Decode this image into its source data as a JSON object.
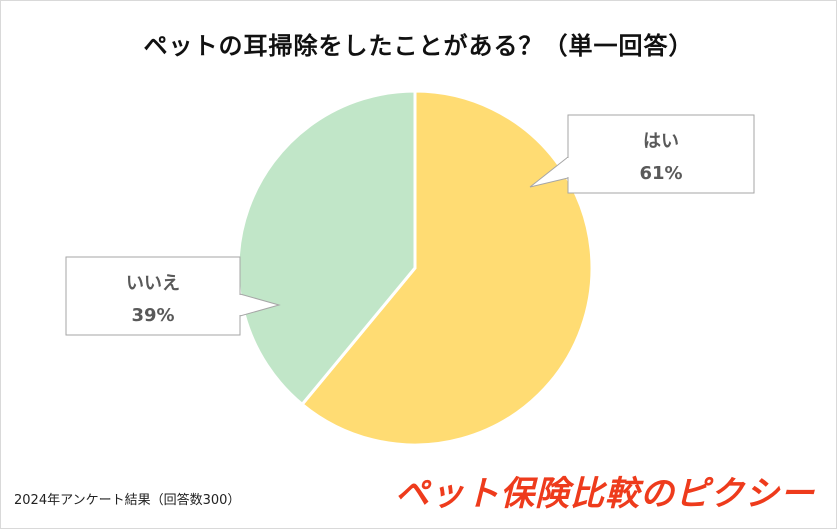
{
  "chart_data": {
    "type": "pie",
    "title": "ペットの耳掃除をしたことがある？（単一回答）",
    "slices": [
      {
        "label": "はい",
        "value": 61,
        "value_label": "61%",
        "color": "#ffdc73"
      },
      {
        "label": "いいえ",
        "value": 39,
        "value_label": "39%",
        "color": "#c1e6c8"
      }
    ],
    "start": "12 o'clock, clockwise"
  },
  "footnote": "2024年アンケート結果（回答数300）",
  "brand": "ペット保険比較のピクシー"
}
